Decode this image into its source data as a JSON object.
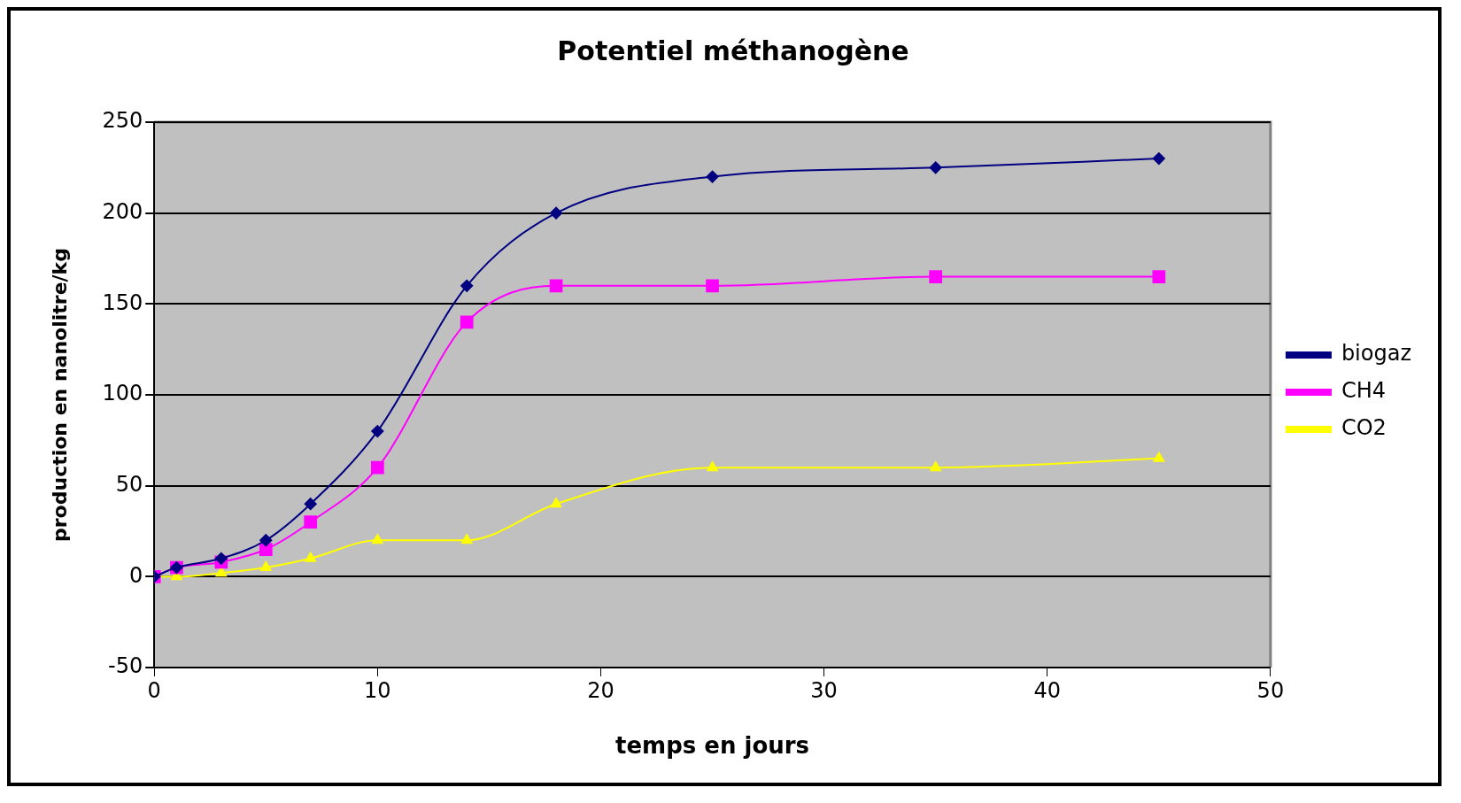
{
  "chart_data": {
    "type": "line",
    "title": "Potentiel méthanogène",
    "xlabel": "temps en jours",
    "ylabel": "production en nanolitre/kg",
    "x": [
      0,
      1,
      3,
      5,
      7,
      10,
      14,
      18,
      25,
      35,
      45
    ],
    "series": [
      {
        "name": "biogaz",
        "color": "#000080",
        "marker": "diamond",
        "values": [
          0,
          5,
          10,
          20,
          40,
          80,
          160,
          200,
          220,
          225,
          230
        ]
      },
      {
        "name": "CH4",
        "color": "#ff00ff",
        "marker": "square",
        "values": [
          0,
          5,
          8,
          15,
          30,
          60,
          140,
          160,
          160,
          165,
          165
        ]
      },
      {
        "name": "CO2",
        "color": "#ffff00",
        "marker": "triangle",
        "values": [
          0,
          0,
          2,
          5,
          10,
          20,
          20,
          40,
          60,
          60,
          65
        ]
      }
    ],
    "xlim": [
      0,
      50
    ],
    "xticks": [
      0,
      10,
      20,
      30,
      40,
      50
    ],
    "ylim": [
      -50,
      250
    ],
    "yticks": [
      -50,
      0,
      50,
      100,
      150,
      200,
      250
    ],
    "grid": "y",
    "legend": "right"
  }
}
